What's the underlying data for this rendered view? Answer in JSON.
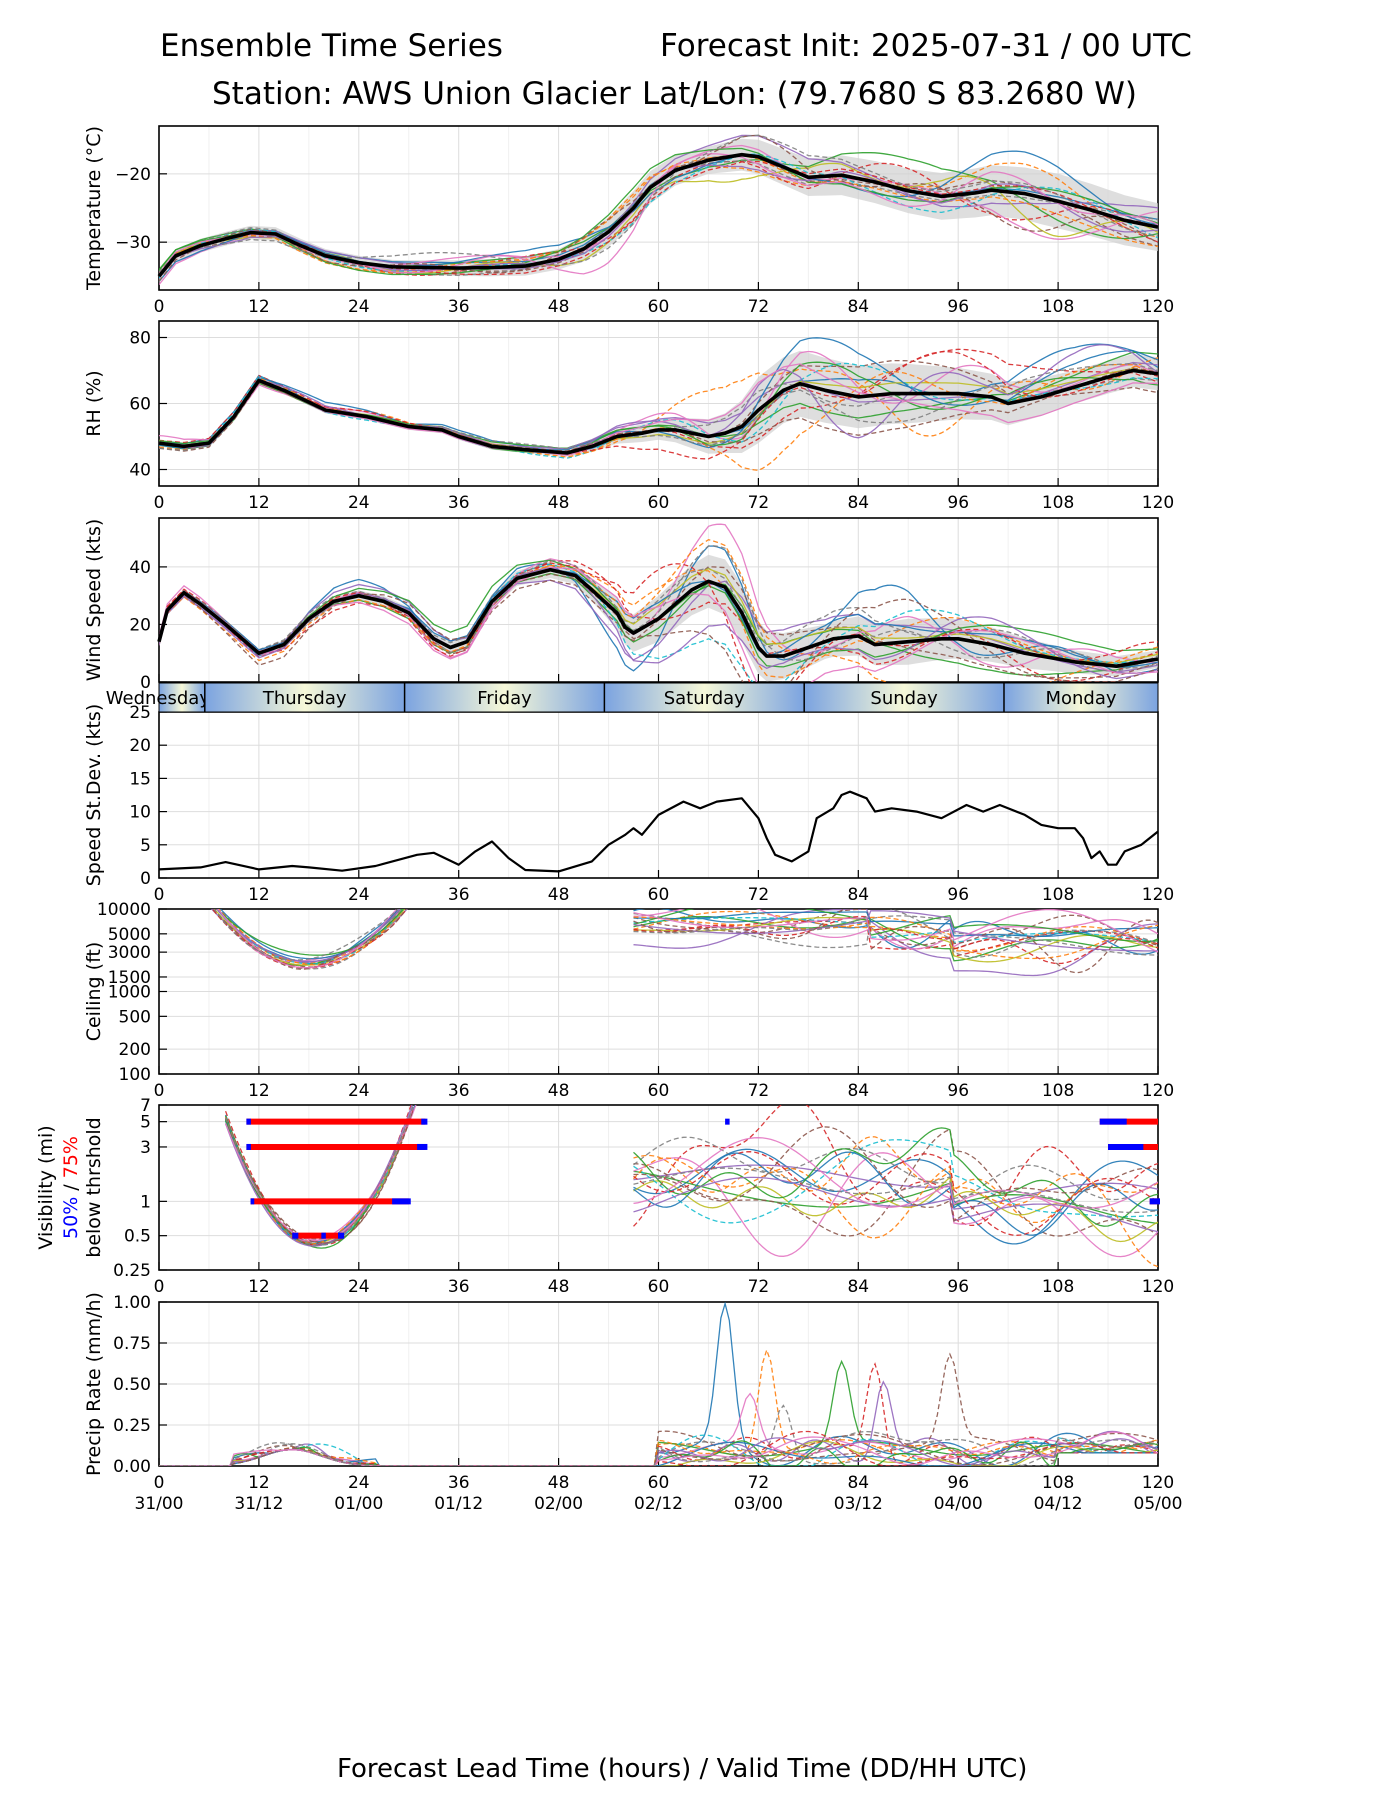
{
  "header": {
    "title_left": "Ensemble Time Series",
    "title_right": "Forecast Init: 2025-07-31 / 00 UTC",
    "station": "Station: AWS Union Glacier",
    "latlon": "Lat/Lon: (79.7680 S 83.2680 W)"
  },
  "xaxis": {
    "label": "Forecast Lead Time (hours) / Valid Time (DD/HH UTC)",
    "ticks": [
      0,
      12,
      24,
      36,
      48,
      60,
      72,
      84,
      96,
      108,
      120
    ],
    "valid_labels": [
      "31/00",
      "31/12",
      "01/00",
      "01/12",
      "02/00",
      "02/12",
      "03/00",
      "03/12",
      "04/00",
      "04/12",
      "05/00"
    ]
  },
  "day_bar": {
    "days": [
      {
        "label": "Wednesday",
        "start": 0,
        "end": 5.5
      },
      {
        "label": "Thursday",
        "start": 5.5,
        "end": 29.5
      },
      {
        "label": "Friday",
        "start": 29.5,
        "end": 53.5
      },
      {
        "label": "Saturday",
        "start": 53.5,
        "end": 77.5
      },
      {
        "label": "Sunday",
        "start": 77.5,
        "end": 101.5
      },
      {
        "label": "Monday",
        "start": 101.5,
        "end": 120
      }
    ]
  },
  "colors": {
    "members": [
      "#1f77b4",
      "#ff7f0e",
      "#2ca02c",
      "#d62728",
      "#9467bd",
      "#8c564b",
      "#e377c2",
      "#7f7f7f",
      "#bcbd22",
      "#17becf"
    ],
    "mean": "#000000",
    "spread": "#d0d0d0",
    "vis50": "#0000ff",
    "vis75": "#ff0000",
    "day_edge": "#7ba3e0",
    "day_mid": "#f6f8d8"
  },
  "chart_data": [
    {
      "id": "temperature",
      "type": "line",
      "ylabel": "Temperature (°C)",
      "ylim": [
        -37,
        -13
      ],
      "yticks": [
        -30,
        -20
      ],
      "mean": [
        [
          0,
          -35
        ],
        [
          2,
          -32
        ],
        [
          5,
          -30.5
        ],
        [
          8,
          -29.5
        ],
        [
          11,
          -28.6
        ],
        [
          14,
          -28.8
        ],
        [
          17,
          -30.5
        ],
        [
          20,
          -32
        ],
        [
          24,
          -33
        ],
        [
          28,
          -33.6
        ],
        [
          32,
          -33.7
        ],
        [
          36,
          -33.8
        ],
        [
          40,
          -33.7
        ],
        [
          44,
          -33.5
        ],
        [
          48,
          -32.5
        ],
        [
          51,
          -31
        ],
        [
          54,
          -28.5
        ],
        [
          57,
          -25
        ],
        [
          59,
          -22
        ],
        [
          62,
          -19.5
        ],
        [
          66,
          -18
        ],
        [
          70,
          -17.2
        ],
        [
          72,
          -17.5
        ],
        [
          75,
          -19
        ],
        [
          78,
          -20.5
        ],
        [
          82,
          -20.2
        ],
        [
          86,
          -21.2
        ],
        [
          90,
          -22.5
        ],
        [
          94,
          -23.3
        ],
        [
          98,
          -22.8
        ],
        [
          100,
          -22.4
        ],
        [
          104,
          -22.9
        ],
        [
          108,
          -24
        ],
        [
          112,
          -25.3
        ],
        [
          116,
          -26.8
        ],
        [
          120,
          -27.8
        ]
      ],
      "spread": [
        [
          0,
          1
        ],
        [
          30,
          1
        ],
        [
          48,
          1.5
        ],
        [
          57,
          2.5
        ],
        [
          66,
          2
        ],
        [
          72,
          2.5
        ],
        [
          84,
          3
        ],
        [
          96,
          3.5
        ],
        [
          108,
          4
        ],
        [
          120,
          3.5
        ]
      ],
      "members": 18
    },
    {
      "id": "rh",
      "type": "line",
      "ylabel": "RH (%)",
      "ylim": [
        35,
        85
      ],
      "yticks": [
        40,
        60,
        80
      ],
      "mean": [
        [
          0,
          48
        ],
        [
          3,
          47
        ],
        [
          6,
          48
        ],
        [
          9,
          56
        ],
        [
          12,
          67
        ],
        [
          15,
          64
        ],
        [
          20,
          58
        ],
        [
          25,
          56
        ],
        [
          30,
          53
        ],
        [
          34,
          52
        ],
        [
          36,
          50
        ],
        [
          40,
          47
        ],
        [
          44,
          46
        ],
        [
          49,
          45
        ],
        [
          52,
          47
        ],
        [
          55,
          50
        ],
        [
          58,
          51
        ],
        [
          60,
          52
        ],
        [
          62,
          52
        ],
        [
          66,
          50
        ],
        [
          68,
          51
        ],
        [
          70,
          53
        ],
        [
          72,
          58
        ],
        [
          75,
          64
        ],
        [
          77,
          66
        ],
        [
          80,
          64
        ],
        [
          84,
          62
        ],
        [
          88,
          63
        ],
        [
          92,
          63
        ],
        [
          96,
          63
        ],
        [
          100,
          62
        ],
        [
          102,
          60
        ],
        [
          106,
          62
        ],
        [
          110,
          65
        ],
        [
          114,
          68
        ],
        [
          117,
          70
        ],
        [
          120,
          69
        ]
      ],
      "spread": [
        [
          0,
          1
        ],
        [
          48,
          1
        ],
        [
          60,
          3
        ],
        [
          68,
          6
        ],
        [
          72,
          10
        ],
        [
          78,
          10
        ],
        [
          90,
          9
        ],
        [
          100,
          7
        ],
        [
          110,
          5
        ],
        [
          120,
          5
        ]
      ],
      "members": 18
    },
    {
      "id": "wind",
      "type": "line",
      "ylabel": "Wind Speed (kts)",
      "ylim": [
        0,
        57
      ],
      "yticks": [
        0,
        20,
        40
      ],
      "mean": [
        [
          0,
          14
        ],
        [
          1,
          25
        ],
        [
          3,
          31
        ],
        [
          5,
          27
        ],
        [
          8,
          20
        ],
        [
          12,
          10
        ],
        [
          15,
          13
        ],
        [
          18,
          22
        ],
        [
          21,
          28
        ],
        [
          24,
          30
        ],
        [
          27,
          28
        ],
        [
          30,
          24
        ],
        [
          33,
          15
        ],
        [
          35,
          12
        ],
        [
          37,
          14
        ],
        [
          40,
          28
        ],
        [
          43,
          36
        ],
        [
          47,
          39
        ],
        [
          50,
          37
        ],
        [
          52,
          32
        ],
        [
          55,
          24
        ],
        [
          56,
          19
        ],
        [
          57,
          17
        ],
        [
          60,
          22
        ],
        [
          64,
          32
        ],
        [
          66,
          35
        ],
        [
          68,
          33
        ],
        [
          70,
          24
        ],
        [
          72,
          12
        ],
        [
          73,
          9
        ],
        [
          75,
          9
        ],
        [
          78,
          12
        ],
        [
          81,
          15
        ],
        [
          84,
          16
        ],
        [
          86,
          13
        ],
        [
          90,
          14
        ],
        [
          94,
          15
        ],
        [
          96,
          15
        ],
        [
          100,
          13
        ],
        [
          104,
          10
        ],
        [
          110,
          7
        ],
        [
          115,
          5.5
        ],
        [
          120,
          8
        ]
      ],
      "spread": [
        [
          0,
          1
        ],
        [
          30,
          2
        ],
        [
          50,
          3
        ],
        [
          60,
          8
        ],
        [
          70,
          10
        ],
        [
          80,
          6
        ],
        [
          90,
          8
        ],
        [
          100,
          6
        ],
        [
          110,
          4
        ],
        [
          120,
          3
        ]
      ],
      "members": 18
    },
    {
      "id": "speed_std",
      "type": "line",
      "ylabel": "Speed St.Dev. (kts)",
      "ylim": [
        0,
        25
      ],
      "yticks": [
        0,
        5,
        10,
        15,
        20,
        25
      ],
      "mean": [
        [
          0,
          1.3
        ],
        [
          5,
          1.6
        ],
        [
          8,
          2.4
        ],
        [
          12,
          1.3
        ],
        [
          16,
          1.8
        ],
        [
          18,
          1.6
        ],
        [
          22,
          1.1
        ],
        [
          26,
          1.8
        ],
        [
          31,
          3.5
        ],
        [
          33,
          3.8
        ],
        [
          36,
          2
        ],
        [
          38,
          4
        ],
        [
          40,
          5.5
        ],
        [
          42,
          3
        ],
        [
          44,
          1.2
        ],
        [
          48,
          1
        ],
        [
          52,
          2.5
        ],
        [
          54,
          5
        ],
        [
          56,
          6.5
        ],
        [
          57,
          7.5
        ],
        [
          58,
          6.5
        ],
        [
          60,
          9.5
        ],
        [
          63,
          11.5
        ],
        [
          65,
          10.5
        ],
        [
          67,
          11.5
        ],
        [
          70,
          12
        ],
        [
          72,
          9
        ],
        [
          73,
          6
        ],
        [
          74,
          3.5
        ],
        [
          76,
          2.5
        ],
        [
          78,
          4
        ],
        [
          79,
          9
        ],
        [
          81,
          10.5
        ],
        [
          82,
          12.5
        ],
        [
          83,
          13
        ],
        [
          85,
          12
        ],
        [
          86,
          10
        ],
        [
          88,
          10.5
        ],
        [
          91,
          10
        ],
        [
          94,
          9
        ],
        [
          97,
          11
        ],
        [
          99,
          10
        ],
        [
          101,
          11
        ],
        [
          104,
          9.5
        ],
        [
          106,
          8
        ],
        [
          108,
          7.5
        ],
        [
          110,
          7.5
        ],
        [
          111,
          6
        ],
        [
          112,
          3
        ],
        [
          113,
          4
        ],
        [
          114,
          2
        ],
        [
          115,
          2
        ],
        [
          116,
          4
        ],
        [
          118,
          5
        ],
        [
          120,
          7
        ]
      ]
    },
    {
      "id": "ceiling",
      "type": "line",
      "ylabel": "Ceiling (ft)",
      "scale": "log",
      "ylim": [
        100,
        10000
      ],
      "yticks": [
        100,
        200,
        500,
        1000,
        1500,
        3000,
        5000,
        10000
      ],
      "members": 18
    },
    {
      "id": "visibility",
      "type": "line",
      "ylabel": "Visibility (mi)",
      "legend": [
        "50%",
        " / ",
        "75%",
        "below thrshold"
      ],
      "scale": "log",
      "ylim": [
        0.25,
        7
      ],
      "yticks": [
        0.25,
        0.5,
        1,
        3,
        5,
        7
      ],
      "thresholds": [
        {
          "y": 5,
          "t75": [
            10.5,
            32
          ],
          "t50": [
            [
              10.5,
              10.8
            ],
            [
              31.5,
              32
            ]
          ]
        },
        {
          "y": 3,
          "t75": [
            10.5,
            32
          ],
          "t50": [
            [
              10.5,
              10.8
            ],
            [
              31,
              32
            ]
          ]
        },
        {
          "y": 1,
          "t75": [
            11,
            30
          ],
          "t50": [
            [
              11,
              11.2
            ],
            [
              28,
              30
            ]
          ]
        },
        {
          "y": 0.5,
          "t75": [
            16,
            22
          ],
          "t50": [
            [
              16,
              16.5
            ],
            [
              19.5,
              19.8
            ],
            [
              21.5,
              22
            ]
          ]
        },
        {
          "y": 5,
          "t75": [
            113,
            120
          ],
          "t50": [
            [
              113,
              116
            ],
            [
              68,
              68.3
            ]
          ]
        },
        {
          "y": 3,
          "t75": [
            114,
            120
          ],
          "t50": [
            [
              114,
              118
            ]
          ]
        },
        {
          "y": 1,
          "t75": [
            119,
            120
          ],
          "t50": [
            [
              119,
              120
            ]
          ]
        }
      ],
      "members": 18
    },
    {
      "id": "precip",
      "type": "line",
      "ylabel": "Precip Rate (mm/h)",
      "ylim": [
        0,
        1
      ],
      "yticks": [
        0,
        0.25,
        0.5,
        0.75,
        1
      ],
      "yticklabels": [
        "0.00",
        "0.25",
        "0.50",
        "0.75",
        "1.00"
      ],
      "members": 18
    }
  ]
}
